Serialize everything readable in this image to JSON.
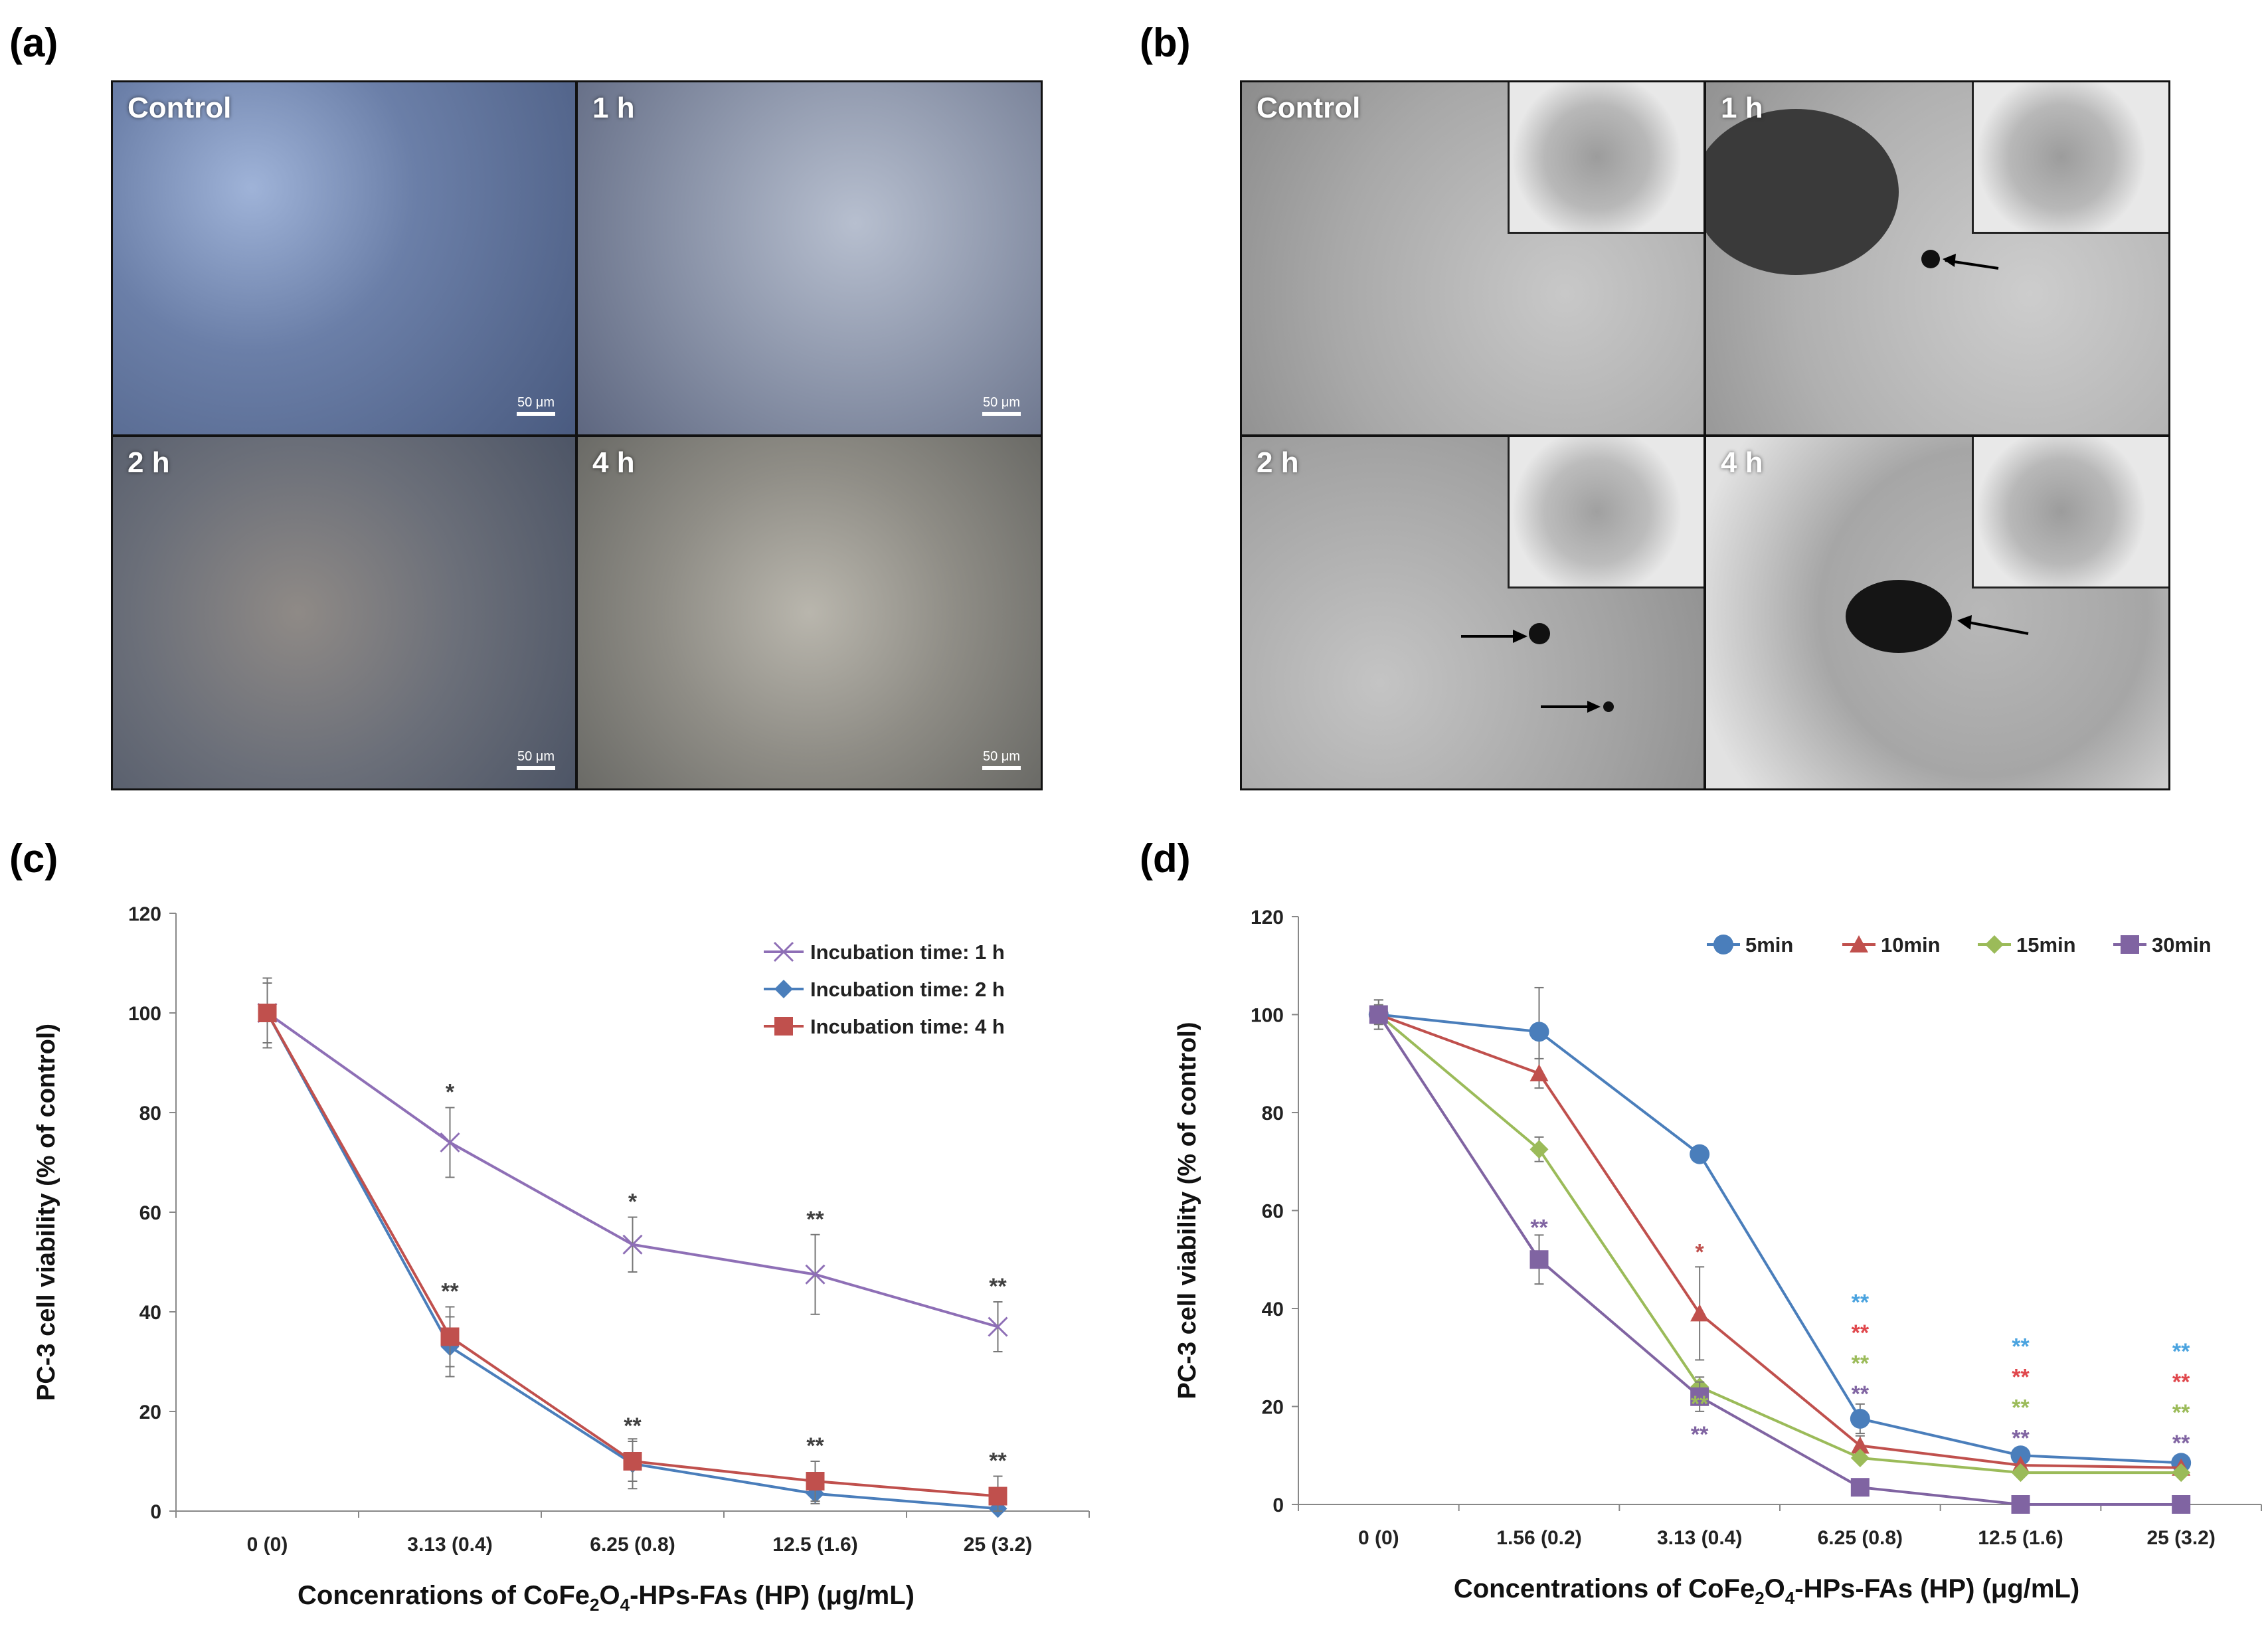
{
  "panels": {
    "a": {
      "label": "(a)",
      "cells": [
        "Control",
        "1 h",
        "2 h",
        "4 h"
      ],
      "scale_label": "50 μm"
    },
    "b": {
      "label": "(b)",
      "cells": [
        "Control",
        "1 h",
        "2 h",
        "4 h"
      ]
    },
    "c": {
      "label": "(c)"
    },
    "d": {
      "label": "(d)"
    }
  },
  "chart_data": [
    {
      "id": "c",
      "type": "line",
      "categories": [
        "0 (0)",
        "3.13 (0.4)",
        "6.25 (0.8)",
        "12.5 (1.6)",
        "25 (3.2)"
      ],
      "ylabel": "PC-3 cell viability (% of control)",
      "xlabel_parts": [
        "Concenrations of  CoFe",
        "2",
        "O",
        "4",
        "-HPs-FAs (HP) (μg/mL)"
      ],
      "ylim": [
        0,
        120
      ],
      "yticks": [
        0,
        20,
        40,
        60,
        80,
        100,
        120
      ],
      "legend_position": "top-right",
      "series": [
        {
          "name": "Incubation time: 1 h",
          "color": "#8e6fb6",
          "marker": "x",
          "values": [
            100,
            74,
            53.5,
            47.5,
            37
          ],
          "errors": [
            7,
            7,
            5.5,
            8,
            5
          ],
          "sig": [
            "",
            "*",
            "*",
            "**",
            "**"
          ]
        },
        {
          "name": "Incubation time: 2 h",
          "color": "#4a7ebb",
          "marker": "diamond",
          "values": [
            100,
            33,
            9.5,
            3.5,
            0.5
          ],
          "errors": [
            6,
            6,
            5,
            2,
            1
          ],
          "sig": [
            "",
            "",
            "",
            "",
            ""
          ]
        },
        {
          "name": "Incubation time: 4 h",
          "color": "#c0504d",
          "marker": "square",
          "values": [
            100,
            35,
            10,
            6,
            3
          ],
          "errors": [
            6,
            6,
            4,
            4,
            4
          ],
          "sig": [
            "",
            "**",
            "**",
            "**",
            "**"
          ]
        }
      ],
      "sig_color": "#404040"
    },
    {
      "id": "d",
      "type": "line",
      "categories": [
        "0 (0)",
        "1.56 (0.2)",
        "3.13 (0.4)",
        "6.25 (0.8)",
        "12.5 (1.6)",
        "25 (3.2)"
      ],
      "ylabel": "PC-3 cell viability (% of control)",
      "xlabel_parts": [
        "Concentrations of CoFe",
        "2",
        "O",
        "4",
        "-HPs-FAs (HP) (μg/mL)"
      ],
      "ylim": [
        0,
        120
      ],
      "yticks": [
        0,
        20,
        40,
        60,
        80,
        100,
        120
      ],
      "legend_position": "top",
      "series": [
        {
          "name": "5min",
          "color": "#4a7ebb",
          "marker": "circle",
          "values": [
            100,
            96.5,
            71.5,
            17.5,
            10,
            8.5
          ],
          "errors": [
            3,
            9,
            0,
            3,
            0,
            0
          ]
        },
        {
          "name": "10min",
          "color": "#c0504d",
          "marker": "triangle",
          "values": [
            100,
            88,
            39,
            12,
            8,
            7.5
          ],
          "errors": [
            0,
            3,
            9.5,
            2,
            0,
            0
          ]
        },
        {
          "name": "15min",
          "color": "#9bbb59",
          "marker": "diamond",
          "values": [
            100,
            72.5,
            24,
            9.5,
            6.5,
            6.5
          ],
          "errors": [
            2,
            2.5,
            2,
            0,
            0,
            0
          ]
        },
        {
          "name": "30min",
          "color": "#8064a2",
          "marker": "square",
          "values": [
            100,
            50,
            22,
            3.5,
            0,
            0
          ],
          "errors": [
            3,
            5,
            3,
            0,
            0,
            0
          ]
        }
      ],
      "sig_groups": [
        {
          "x": 1,
          "marks": [
            {
              "t": "**",
              "c": "#8064a2"
            }
          ],
          "pos": "above",
          "y": 55
        },
        {
          "x": 2,
          "marks": [
            {
              "t": "*",
              "c": "#c0504d"
            }
          ],
          "pos": "above",
          "y": 50
        },
        {
          "x": 2,
          "marks": [
            {
              "t": "**",
              "c": "#9bbb59"
            },
            {
              "t": "**",
              "c": "#8064a2"
            }
          ],
          "pos": "below",
          "y": 19
        },
        {
          "x": 3,
          "marks": [
            {
              "t": "**",
              "c": "#4aa3df"
            },
            {
              "t": "**",
              "c": "#e0474c"
            },
            {
              "t": "**",
              "c": "#9bbb59"
            },
            {
              "t": "**",
              "c": "#8064a2"
            }
          ],
          "pos": "above",
          "y": 21
        },
        {
          "x": 4,
          "marks": [
            {
              "t": "**",
              "c": "#4aa3df"
            },
            {
              "t": "**",
              "c": "#e0474c"
            },
            {
              "t": "**",
              "c": "#9bbb59"
            },
            {
              "t": "**",
              "c": "#8064a2"
            }
          ],
          "pos": "above",
          "y": 12
        },
        {
          "x": 5,
          "marks": [
            {
              "t": "**",
              "c": "#4aa3df"
            },
            {
              "t": "**",
              "c": "#e0474c"
            },
            {
              "t": "**",
              "c": "#9bbb59"
            },
            {
              "t": "**",
              "c": "#8064a2"
            }
          ],
          "pos": "above",
          "y": 11
        }
      ]
    }
  ]
}
